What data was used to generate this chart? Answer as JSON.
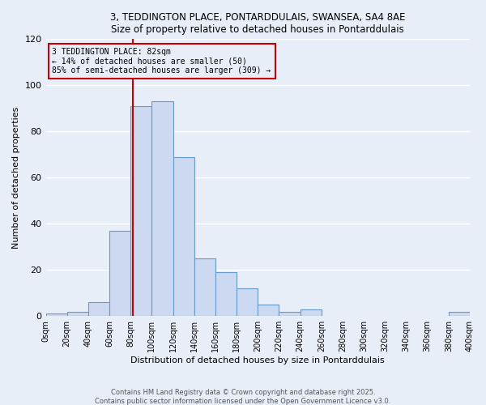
{
  "title_line1": "3, TEDDINGTON PLACE, PONTARDDULAIS, SWANSEA, SA4 8AE",
  "title_line2": "Size of property relative to detached houses in Pontarddulais",
  "xlabel": "Distribution of detached houses by size in Pontarddulais",
  "ylabel": "Number of detached properties",
  "bin_edges": [
    0,
    20,
    40,
    60,
    80,
    100,
    120,
    140,
    160,
    180,
    200,
    220,
    240,
    260,
    280,
    300,
    320,
    340,
    360,
    380,
    400
  ],
  "bin_counts": [
    1,
    2,
    6,
    37,
    91,
    93,
    69,
    25,
    19,
    12,
    5,
    2,
    3,
    0,
    0,
    0,
    0,
    0,
    0,
    2
  ],
  "bar_color": "#ccd9f0",
  "bar_edge_color": "#6699cc",
  "property_size": 82,
  "annotation_line1": "3 TEDDINGTON PLACE: 82sqm",
  "annotation_line2": "← 14% of detached houses are smaller (50)",
  "annotation_line3": "85% of semi-detached houses are larger (309) →",
  "vline_color": "#cc0000",
  "annotation_box_edge_color": "#cc0000",
  "ylim": [
    0,
    120
  ],
  "yticks": [
    0,
    20,
    40,
    60,
    80,
    100,
    120
  ],
  "footnote_line1": "Contains HM Land Registry data © Crown copyright and database right 2025.",
  "footnote_line2": "Contains public sector information licensed under the Open Government Licence v3.0.",
  "background_color": "#e8eef8",
  "grid_color": "#ffffff"
}
